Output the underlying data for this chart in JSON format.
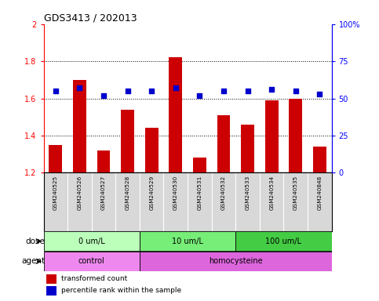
{
  "title": "GDS3413 / 202013",
  "samples": [
    "GSM240525",
    "GSM240526",
    "GSM240527",
    "GSM240528",
    "GSM240529",
    "GSM240530",
    "GSM240531",
    "GSM240532",
    "GSM240533",
    "GSM240534",
    "GSM240535",
    "GSM240848"
  ],
  "bar_values": [
    1.35,
    1.7,
    1.32,
    1.54,
    1.44,
    1.82,
    1.28,
    1.51,
    1.46,
    1.59,
    1.6,
    1.34
  ],
  "scatter_pct": [
    55,
    57,
    52,
    55,
    55,
    57,
    52,
    55,
    55,
    56,
    55,
    53
  ],
  "bar_color": "#cc0000",
  "scatter_color": "#0000cc",
  "ylim_left": [
    1.2,
    2.0
  ],
  "ylim_right": [
    0,
    100
  ],
  "yticks_left": [
    1.2,
    1.4,
    1.6,
    1.8,
    2.0
  ],
  "ytick_labels_left": [
    "1.2",
    "1.4",
    "1.6",
    "1.8",
    "2"
  ],
  "yticks_right": [
    0,
    25,
    50,
    75,
    100
  ],
  "ytick_labels_right": [
    "0",
    "25",
    "50",
    "75",
    "100%"
  ],
  "hlines": [
    1.4,
    1.6,
    1.8
  ],
  "dose_groups": [
    {
      "label": "0 um/L",
      "start": 0,
      "end": 4,
      "color": "#bbffbb"
    },
    {
      "label": "10 um/L",
      "start": 4,
      "end": 8,
      "color": "#77ee77"
    },
    {
      "label": "100 um/L",
      "start": 8,
      "end": 12,
      "color": "#44cc44"
    }
  ],
  "agent_groups": [
    {
      "label": "control",
      "start": 0,
      "end": 4,
      "color": "#ee88ee"
    },
    {
      "label": "homocysteine",
      "start": 4,
      "end": 12,
      "color": "#dd66dd"
    }
  ],
  "dose_label": "dose",
  "agent_label": "agent",
  "legend_bar_label": "transformed count",
  "legend_scatter_label": "percentile rank within the sample",
  "bar_bottom": 1.2
}
